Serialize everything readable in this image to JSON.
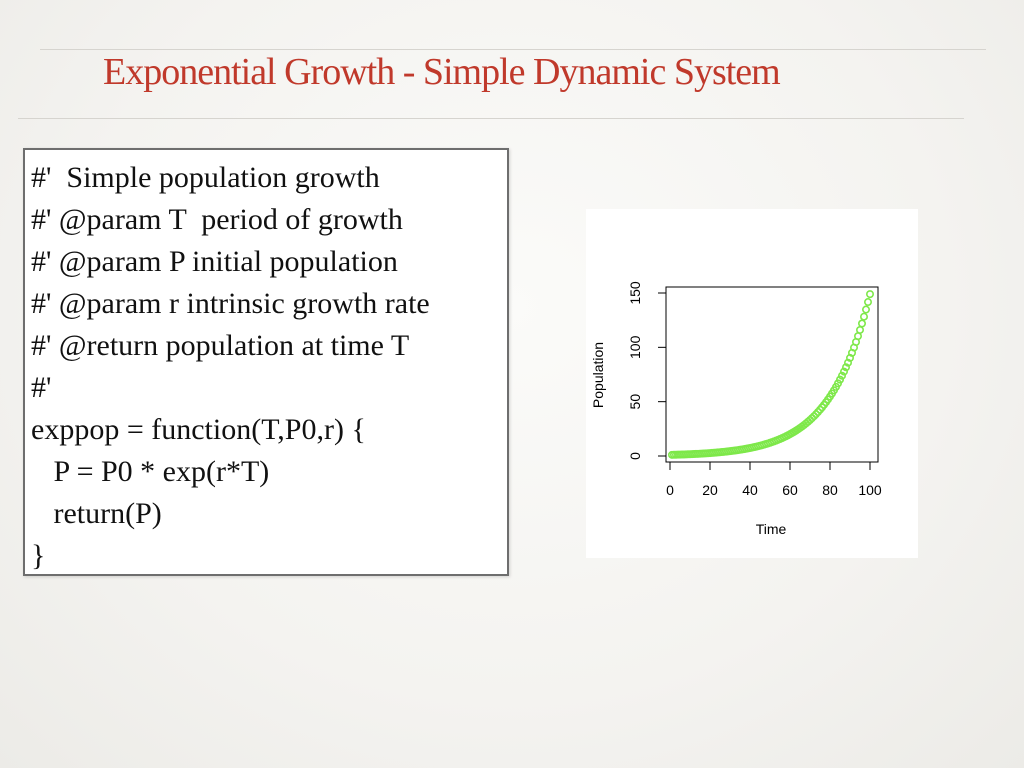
{
  "slide": {
    "title": "Exponential Growth - Simple Dynamic System"
  },
  "code": {
    "lines": [
      "#'  Simple population growth",
      "#' @param T  period of growth",
      "#' @param P initial population",
      "#' @param r intrinsic growth rate",
      "#' @return population at time T",
      "#'",
      "exppop = function(T,P0,r) {",
      "   P = P0 * exp(r*T)",
      "   return(P)",
      "}"
    ]
  },
  "chart_data": {
    "type": "scatter",
    "title": "",
    "xlabel": "Time",
    "ylabel": "Population",
    "xlim": [
      0,
      100
    ],
    "ylim": [
      0,
      150
    ],
    "x_ticks": [
      0,
      20,
      40,
      60,
      80,
      100
    ],
    "y_ticks": [
      0,
      50,
      100,
      150
    ],
    "point_color": "#7ee84a",
    "marker": "open-circle",
    "grid": false,
    "legend": "none",
    "series": [
      {
        "x": [
          1,
          2,
          3,
          4,
          5,
          6,
          7,
          8,
          9,
          10,
          11,
          12,
          13,
          14,
          15,
          16,
          17,
          18,
          19,
          20,
          21,
          22,
          23,
          24,
          25,
          26,
          27,
          28,
          29,
          30,
          31,
          32,
          33,
          34,
          35,
          36,
          37,
          38,
          39,
          40,
          41,
          42,
          43,
          44,
          45,
          46,
          47,
          48,
          49,
          50,
          51,
          52,
          53,
          54,
          55,
          56,
          57,
          58,
          59,
          60,
          61,
          62,
          63,
          64,
          65,
          66,
          67,
          68,
          69,
          70,
          71,
          72,
          73,
          74,
          75,
          76,
          77,
          78,
          79,
          80,
          81,
          82,
          83,
          84,
          85,
          86,
          87,
          88,
          89,
          90,
          91,
          92,
          93,
          94,
          95,
          96,
          97,
          98,
          99,
          100
        ],
        "y": [
          1.05,
          1.11,
          1.16,
          1.22,
          1.28,
          1.35,
          1.42,
          1.49,
          1.56,
          1.64,
          1.73,
          1.82,
          1.91,
          2.0,
          2.11,
          2.21,
          2.33,
          2.45,
          2.57,
          2.7,
          2.84,
          2.99,
          3.14,
          3.3,
          3.47,
          3.65,
          3.84,
          4.03,
          4.24,
          4.46,
          4.69,
          4.93,
          5.18,
          5.45,
          5.73,
          6.02,
          6.33,
          6.66,
          7.0,
          7.36,
          7.74,
          8.14,
          8.56,
          9.0,
          9.46,
          9.95,
          10.46,
          11.0,
          11.56,
          12.16,
          12.79,
          13.44,
          14.13,
          14.86,
          15.63,
          16.43,
          17.27,
          18.16,
          19.1,
          20.08,
          21.11,
          22.2,
          23.34,
          24.53,
          25.8,
          27.12,
          28.51,
          29.98,
          31.52,
          33.14,
          34.84,
          36.63,
          38.51,
          40.49,
          42.58,
          44.76,
          47.07,
          49.48,
          52.02,
          54.7,
          57.51,
          60.46,
          63.57,
          66.83,
          70.27,
          73.87,
          77.67,
          81.66,
          85.85,
          90.27,
          94.9,
          99.78,
          104.9,
          110.3,
          115.97,
          121.92,
          128.18,
          134.77,
          141.69,
          148.97
        ]
      }
    ]
  }
}
